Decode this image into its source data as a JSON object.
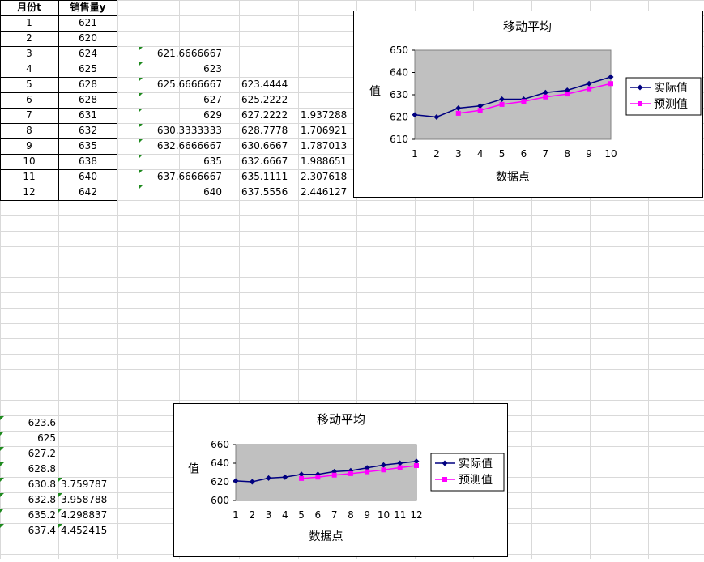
{
  "sheet": {
    "headers": {
      "month": "月份t",
      "sales": "销售量y"
    },
    "rows": [
      {
        "t": "1",
        "y": "621",
        "b": "",
        "c": "",
        "d": ""
      },
      {
        "t": "2",
        "y": "620",
        "b": "",
        "c": "",
        "d": ""
      },
      {
        "t": "3",
        "y": "624",
        "b": "621.6666667",
        "c": "",
        "d": ""
      },
      {
        "t": "4",
        "y": "625",
        "b": "623",
        "c": "",
        "d": ""
      },
      {
        "t": "5",
        "y": "628",
        "b": "625.6666667",
        "c": "623.4444",
        "d": ""
      },
      {
        "t": "6",
        "y": "628",
        "b": "627",
        "c": "625.2222",
        "d": ""
      },
      {
        "t": "7",
        "y": "631",
        "b": "629",
        "c": "627.2222",
        "d": "1.937288"
      },
      {
        "t": "8",
        "y": "632",
        "b": "630.3333333",
        "c": "628.7778",
        "d": "1.706921"
      },
      {
        "t": "9",
        "y": "635",
        "b": "632.6666667",
        "c": "630.6667",
        "d": "1.787013"
      },
      {
        "t": "10",
        "y": "638",
        "b": "635",
        "c": "632.6667",
        "d": "1.988651"
      },
      {
        "t": "11",
        "y": "640",
        "b": "637.6666667",
        "c": "635.1111",
        "d": "2.307618"
      },
      {
        "t": "12",
        "y": "642",
        "b": "640",
        "c": "637.5556",
        "d": "2.446127"
      }
    ],
    "lower_rows": [
      {
        "a": "623.6",
        "b": ""
      },
      {
        "a": "625",
        "b": ""
      },
      {
        "a": "627.2",
        "b": ""
      },
      {
        "a": "628.8",
        "b": ""
      },
      {
        "a": "630.8",
        "b": "3.759787"
      },
      {
        "a": "632.8",
        "b": "3.958788"
      },
      {
        "a": "635.2",
        "b": "4.298837"
      },
      {
        "a": "637.4",
        "b": "4.452415"
      }
    ]
  },
  "colors": {
    "actual": "#000080",
    "forecast": "#ff00ff",
    "plot_bg": "#c0c0c0",
    "grid": "#d9d9d9"
  },
  "chart_data": [
    {
      "type": "line",
      "title": "移动平均",
      "xlabel": "数据点",
      "ylabel": "值",
      "x": [
        1,
        2,
        3,
        4,
        5,
        6,
        7,
        8,
        9,
        10
      ],
      "ylim": [
        610,
        650
      ],
      "yticks": [
        610,
        620,
        630,
        640,
        650
      ],
      "grid": false,
      "legend": "right",
      "series": [
        {
          "name": "实际值",
          "values": [
            621,
            620,
            624,
            625,
            628,
            628,
            631,
            632,
            635,
            638
          ]
        },
        {
          "name": "预测值",
          "values": [
            null,
            null,
            621.67,
            623,
            625.67,
            627,
            629,
            630.33,
            632.67,
            635
          ]
        }
      ]
    },
    {
      "type": "line",
      "title": "移动平均",
      "xlabel": "数据点",
      "ylabel": "值",
      "x": [
        1,
        2,
        3,
        4,
        5,
        6,
        7,
        8,
        9,
        10,
        11,
        12
      ],
      "ylim": [
        600,
        660
      ],
      "yticks": [
        600,
        620,
        640,
        660
      ],
      "grid": false,
      "legend": "right",
      "series": [
        {
          "name": "实际值",
          "values": [
            621,
            620,
            624,
            625,
            628,
            628,
            631,
            632,
            635,
            638,
            640,
            642
          ]
        },
        {
          "name": "预测值",
          "values": [
            null,
            null,
            null,
            null,
            623.6,
            625,
            627.2,
            628.8,
            630.8,
            632.8,
            635.2,
            637.4
          ]
        }
      ]
    }
  ]
}
